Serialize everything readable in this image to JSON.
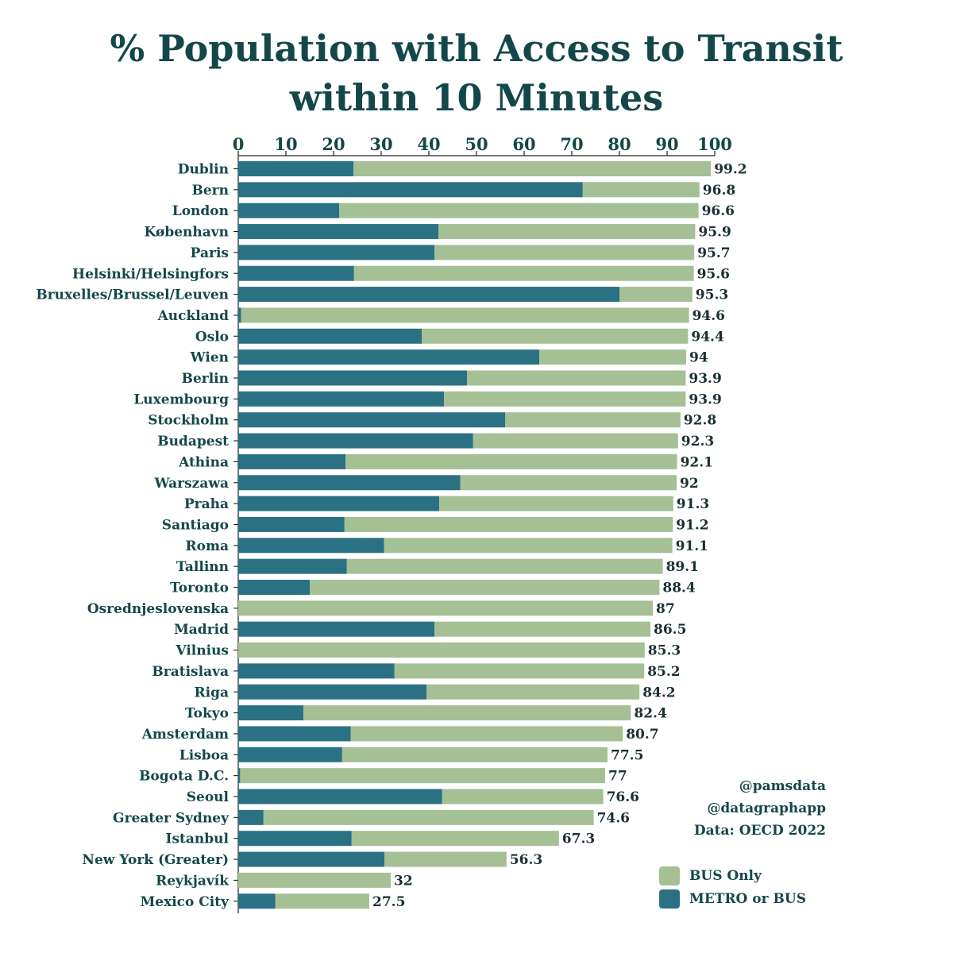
{
  "title_line1": "% Population with Access to Transit",
  "title_line2": "within 10 Minutes",
  "credits": {
    "line1": "@pamsdata",
    "line2": "@datagraphapp",
    "line3": "Data: OECD 2022"
  },
  "colors": {
    "bus": "#a5c095",
    "metro": "#2b7184",
    "text": "#14474a"
  },
  "chart_data": {
    "type": "bar",
    "orientation": "horizontal",
    "stacked": true,
    "title": "% Population with Access to Transit within 10 Minutes",
    "xlim": [
      0,
      100
    ],
    "xticks": [
      0,
      10,
      20,
      30,
      40,
      50,
      60,
      70,
      80,
      90,
      100
    ],
    "axis_position": "top",
    "categories": [
      "Dublin",
      "Bern",
      "London",
      "København",
      "Paris",
      "Helsinki/Helsingfors",
      "Bruxelles/Brussel/Leuven",
      "Auckland",
      "Oslo",
      "Wien",
      "Berlin",
      "Luxembourg",
      "Stockholm",
      "Budapest",
      "Athina",
      "Warszawa",
      "Praha",
      "Santiago",
      "Roma",
      "Tallinn",
      "Toronto",
      "Osrednjeslovenska",
      "Madrid",
      "Vilnius",
      "Bratislava",
      "Riga",
      "Tokyo",
      "Amsterdam",
      "Lisboa",
      "Bogota D.C.",
      "Seoul",
      "Greater Sydney",
      "Istanbul",
      "New York (Greater)",
      "Reykjavík",
      "Mexico City"
    ],
    "totals": [
      99.2,
      96.8,
      96.6,
      95.9,
      95.7,
      95.6,
      95.3,
      94.6,
      94.4,
      94,
      93.9,
      93.9,
      92.8,
      92.3,
      92.1,
      92,
      91.3,
      91.2,
      91.1,
      89.1,
      88.4,
      87,
      86.5,
      85.3,
      85.2,
      84.2,
      82.4,
      80.7,
      77.5,
      77,
      76.6,
      74.6,
      67.3,
      56.3,
      32,
      27.5
    ],
    "total_labels": [
      "99.2",
      "96.8",
      "96.6",
      "95.9",
      "95.7",
      "95.6",
      "95.3",
      "94.6",
      "94.4",
      "94",
      "93.9",
      "93.9",
      "92.8",
      "92.3",
      "92.1",
      "92",
      "91.3",
      "91.2",
      "91.1",
      "89.1",
      "88.4",
      "87",
      "86.5",
      "85.3",
      "85.2",
      "84.2",
      "82.4",
      "80.7",
      "77.5",
      "77",
      "76.6",
      "74.6",
      "67.3",
      "56.3",
      "32",
      "27.5"
    ],
    "series": [
      {
        "name": "METRO or BUS",
        "values": [
          24.2,
          72.3,
          21.2,
          42,
          41.2,
          24.3,
          80,
          0.6,
          38.5,
          63.2,
          48,
          43.2,
          56,
          49.3,
          22.5,
          46.6,
          42.2,
          22.3,
          30.6,
          22.8,
          15,
          0,
          41.2,
          0,
          32.8,
          39.5,
          13.7,
          23.6,
          21.8,
          0.4,
          42.8,
          5.3,
          23.8,
          30.7,
          0,
          7.8
        ]
      },
      {
        "name": "BUS Only",
        "values": [
          75,
          24.5,
          75.4,
          53.9,
          54.5,
          71.3,
          15.3,
          94,
          55.9,
          30.8,
          45.9,
          50.7,
          36.8,
          43,
          69.6,
          45.4,
          49.1,
          68.9,
          60.5,
          66.3,
          73.4,
          87,
          45.3,
          85.3,
          52.4,
          44.7,
          68.7,
          57.1,
          55.7,
          76.6,
          33.8,
          69.3,
          43.5,
          25.6,
          32,
          19.7
        ]
      }
    ],
    "legend": [
      "BUS Only",
      "METRO or BUS"
    ],
    "legend_position": "bottom-right"
  }
}
